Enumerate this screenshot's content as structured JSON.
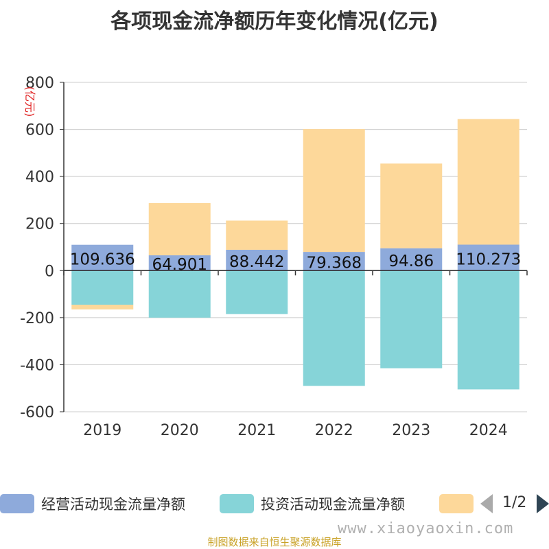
{
  "chart_data": {
    "type": "bar",
    "title": "各项现金流净额历年变化情况(亿元)",
    "ylabel": "(亿元)",
    "xlabel": "",
    "categories": [
      "2019",
      "2020",
      "2021",
      "2022",
      "2023",
      "2024"
    ],
    "ylim": [
      -600,
      800
    ],
    "yticks": [
      800,
      600,
      400,
      200,
      0,
      -200,
      -400,
      -600
    ],
    "grid": true,
    "legend_position": "bottom",
    "stacked": true,
    "series": [
      {
        "name": "经营活动现金流量净额",
        "color": "#8eaadb",
        "values": [
          109.636,
          64.901,
          88.442,
          79.368,
          94.86,
          110.273
        ],
        "labels": [
          "109.636",
          "64.901",
          "88.442",
          "79.368",
          "94.86",
          "110.273"
        ]
      },
      {
        "name": "投资活动现金流量净额",
        "color": "#86d4d8",
        "values": [
          -145,
          -200,
          -185,
          -490,
          -415,
          -505
        ]
      },
      {
        "name": "",
        "color": "#fdd89a",
        "values": [
          -20,
          222,
          124,
          522,
          360,
          534
        ]
      }
    ]
  },
  "legend": {
    "page": "1/2"
  },
  "watermark": "www.xiaoyaoxin.com",
  "source_note": "制图数据来自恒生聚源数据库"
}
